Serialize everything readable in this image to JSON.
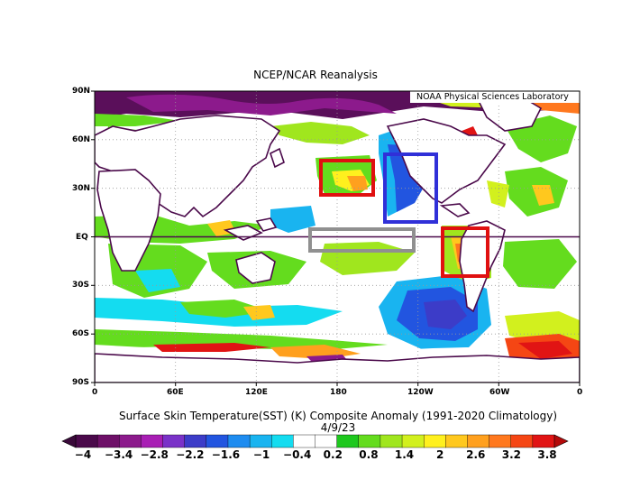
{
  "title": "NCEP/NCAR Reanalysis",
  "credit": "NOAA Physical Sciences Laboratory",
  "lat_labels": [
    "90N",
    "60N",
    "30N",
    "EQ",
    "30S",
    "60S",
    "90S"
  ],
  "lon_labels": [
    "0",
    "60E",
    "120E",
    "180",
    "120W",
    "60W",
    "0"
  ],
  "caption_line1": "Surface Skin Temperature(SST) (K) Composite Anomaly (1991-2020 Climatology)",
  "caption_line2": "4/9/23",
  "colorbar": {
    "labels": [
      "-4",
      "-3.4",
      "-2.8",
      "-2.2",
      "-1.6",
      "-1",
      "-0.4",
      "0.2",
      "0.8",
      "1.4",
      "2",
      "2.6",
      "3.2",
      "3.8"
    ],
    "colors": [
      "#4b0a4b",
      "#6e1068",
      "#8c1a8c",
      "#a81eb4",
      "#7a32c8",
      "#3c3cc8",
      "#2255e0",
      "#1e8cf0",
      "#19b4f0",
      "#14dcf0",
      "#ffffff",
      "#ffffff",
      "#1ec81e",
      "#64dc1e",
      "#a0e61e",
      "#d2f01e",
      "#fff01e",
      "#ffc81e",
      "#ffa01e",
      "#ff781e",
      "#f54614",
      "#e11414"
    ]
  },
  "boxes": [
    {
      "name": "north-pacific-warm-box",
      "color": "#e01010"
    },
    {
      "name": "northeast-pacific-cool-box",
      "color": "#3030d8"
    },
    {
      "name": "equatorial-pacific-box",
      "color": "#909090"
    },
    {
      "name": "south-america-coast-warm-box",
      "color": "#e01010"
    }
  ]
}
